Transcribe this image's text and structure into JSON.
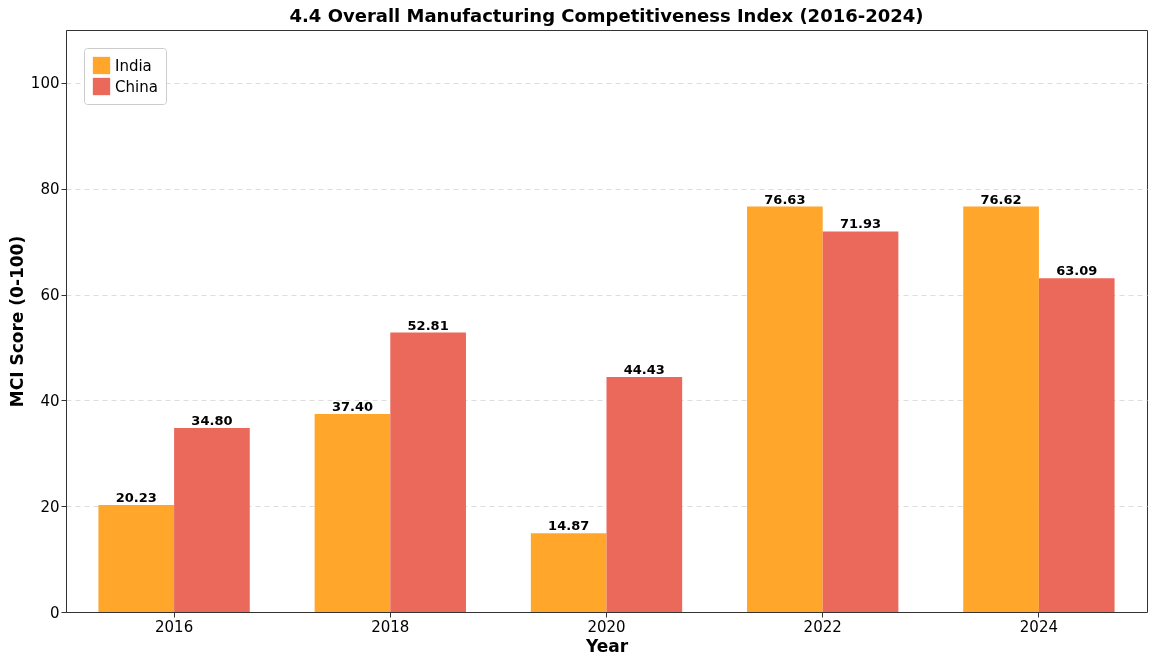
{
  "chart_data": {
    "type": "bar",
    "title": "4.4 Overall Manufacturing Competitiveness Index (2016-2024)",
    "xlabel": "Year",
    "ylabel": "MCI Score (0-100)",
    "categories": [
      "2016",
      "2018",
      "2020",
      "2022",
      "2024"
    ],
    "series": [
      {
        "name": "India",
        "color": "#ffa62b",
        "values": [
          20.23,
          37.4,
          14.87,
          76.63,
          76.62
        ],
        "value_labels": [
          "20.23",
          "37.40",
          "14.87",
          "76.63",
          "76.62"
        ]
      },
      {
        "name": "China",
        "color": "#eb695a",
        "values": [
          34.8,
          52.81,
          44.43,
          71.93,
          63.09
        ],
        "value_labels": [
          "34.80",
          "52.81",
          "44.43",
          "71.93",
          "63.09"
        ]
      }
    ],
    "ylim": [
      0,
      110
    ],
    "yticks": [
      0,
      20,
      40,
      60,
      80,
      100
    ],
    "grid": "y",
    "legend": "top left"
  }
}
